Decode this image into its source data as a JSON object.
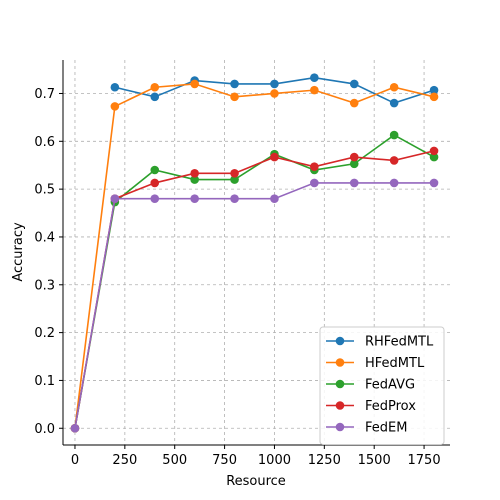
{
  "chart_data": {
    "type": "line",
    "xlabel": "Resource",
    "ylabel": "Accuracy",
    "xlim": [
      -60,
      1880
    ],
    "ylim": [
      -0.035,
      0.77
    ],
    "xticks": [
      0,
      250,
      500,
      750,
      1000,
      1250,
      1500,
      1750
    ],
    "yticks": [
      0.0,
      0.1,
      0.2,
      0.3,
      0.4,
      0.5,
      0.6,
      0.7
    ],
    "grid": true,
    "legend_position": "lower-right",
    "series": [
      {
        "name": "RHFedMTL",
        "color": "#1f77b4",
        "x": [
          200,
          400,
          600,
          800,
          1000,
          1200,
          1400,
          1600,
          1800
        ],
        "y": [
          0.713,
          0.693,
          0.727,
          0.72,
          0.72,
          0.733,
          0.72,
          0.68,
          0.707
        ]
      },
      {
        "name": "HFedMTL",
        "color": "#ff7f0e",
        "x": [
          0,
          200,
          400,
          600,
          800,
          1000,
          1200,
          1400,
          1600,
          1800
        ],
        "y": [
          0.0,
          0.673,
          0.713,
          0.72,
          0.693,
          0.7,
          0.707,
          0.68,
          0.713,
          0.693
        ]
      },
      {
        "name": "FedAVG",
        "color": "#2ca02c",
        "x": [
          0,
          200,
          400,
          600,
          800,
          1000,
          1200,
          1400,
          1600,
          1800
        ],
        "y": [
          0.0,
          0.473,
          0.54,
          0.52,
          0.52,
          0.573,
          0.54,
          0.553,
          0.613,
          0.567
        ]
      },
      {
        "name": "FedProx",
        "color": "#d62728",
        "x": [
          0,
          200,
          400,
          600,
          800,
          1000,
          1200,
          1400,
          1600,
          1800
        ],
        "y": [
          0.0,
          0.48,
          0.513,
          0.533,
          0.533,
          0.567,
          0.547,
          0.567,
          0.56,
          0.58
        ]
      },
      {
        "name": "FedEM",
        "color": "#9467bd",
        "x": [
          0,
          200,
          400,
          600,
          800,
          1000,
          1200,
          1400,
          1600,
          1800
        ],
        "y": [
          0.0,
          0.48,
          0.48,
          0.48,
          0.48,
          0.48,
          0.513,
          0.513,
          0.513,
          0.513
        ]
      }
    ]
  }
}
